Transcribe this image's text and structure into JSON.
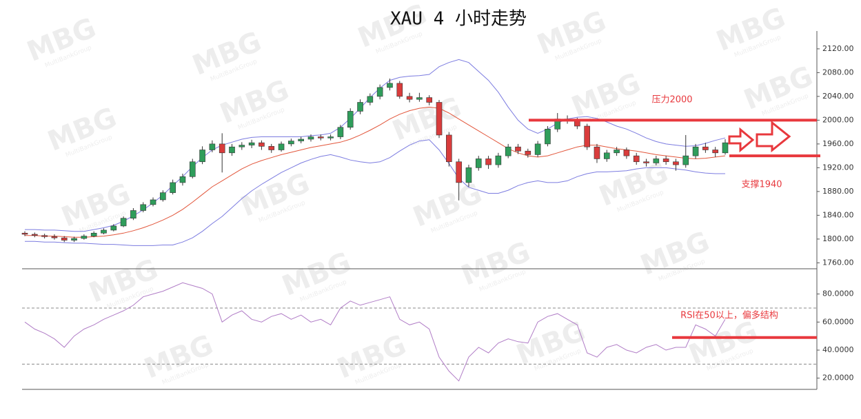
{
  "chart_data": {
    "type": "candlestick",
    "title": "XAU 4 小时走势",
    "ylim": [
      1750,
      2150
    ],
    "yticks": [
      {
        "value": 1760,
        "label": "1760.00"
      },
      {
        "value": 1800,
        "label": "1800.00"
      },
      {
        "value": 1840,
        "label": "1840.00"
      },
      {
        "value": 1880,
        "label": "1880.00"
      },
      {
        "value": 1920,
        "label": "1920.00"
      },
      {
        "value": 1960,
        "label": "1960.00"
      },
      {
        "value": 2000,
        "label": "2000.00"
      },
      {
        "value": 2040,
        "label": "2040.00"
      },
      {
        "value": 2080,
        "label": "2080.00"
      },
      {
        "value": 2120,
        "label": "2120.00"
      }
    ],
    "candles": {
      "up_color": "#2f9d5b",
      "down_color": "#d93c3c",
      "open": [
        1810,
        1808,
        1806,
        1804,
        1802,
        1798,
        1801,
        1805,
        1810,
        1815,
        1822,
        1835,
        1848,
        1858,
        1866,
        1878,
        1895,
        1905,
        1930,
        1950,
        1960,
        1945,
        1955,
        1958,
        1962,
        1956,
        1950,
        1960,
        1965,
        1968,
        1972,
        1970,
        1972,
        1988,
        2015,
        2030,
        2040,
        2055,
        2062,
        2040,
        2035,
        2038,
        2030,
        1975,
        1930,
        1895,
        1920,
        1935,
        1925,
        1940,
        1955,
        1948,
        1942,
        1960,
        1985,
        2002,
        2000,
        1990,
        1955,
        1935,
        1945,
        1950,
        1940,
        1930,
        1928,
        1935,
        1930,
        1925,
        1940,
        1955,
        1950,
        1945
      ],
      "high": [
        1813,
        1811,
        1809,
        1808,
        1805,
        1804,
        1808,
        1813,
        1818,
        1825,
        1838,
        1852,
        1862,
        1870,
        1882,
        1900,
        1910,
        1935,
        1956,
        1966,
        1978,
        1960,
        1963,
        1967,
        1966,
        1960,
        1964,
        1969,
        1972,
        1976,
        1976,
        1976,
        1992,
        2020,
        2035,
        2045,
        2060,
        2070,
        2066,
        2046,
        2046,
        2042,
        2034,
        1980,
        1935,
        1925,
        1940,
        1940,
        1945,
        1960,
        1960,
        1952,
        1965,
        1990,
        2012,
        2008,
        2004,
        1994,
        1960,
        1950,
        1955,
        1954,
        1945,
        1935,
        1940,
        1940,
        1935,
        1975,
        1960,
        1962,
        1955,
        1968
      ],
      "low": [
        1805,
        1803,
        1801,
        1799,
        1795,
        1795,
        1799,
        1803,
        1808,
        1813,
        1820,
        1832,
        1845,
        1855,
        1863,
        1875,
        1890,
        1902,
        1926,
        1946,
        1912,
        1940,
        1950,
        1953,
        1950,
        1945,
        1947,
        1956,
        1961,
        1964,
        1966,
        1966,
        1968,
        1984,
        2010,
        2025,
        2035,
        2050,
        2036,
        2030,
        2031,
        2025,
        1970,
        1922,
        1865,
        1888,
        1915,
        1918,
        1920,
        1936,
        1943,
        1937,
        1938,
        1956,
        1980,
        1994,
        1985,
        1950,
        1928,
        1930,
        1940,
        1935,
        1925,
        1922,
        1924,
        1925,
        1915,
        1920,
        1935,
        1945,
        1938,
        1942
      ],
      "close": [
        1808,
        1806,
        1804,
        1802,
        1798,
        1801,
        1805,
        1810,
        1815,
        1822,
        1835,
        1848,
        1858,
        1866,
        1878,
        1895,
        1905,
        1930,
        1950,
        1960,
        1945,
        1955,
        1958,
        1962,
        1956,
        1950,
        1960,
        1965,
        1968,
        1972,
        1970,
        1972,
        1988,
        2015,
        2030,
        2040,
        2055,
        2062,
        2040,
        2035,
        2038,
        2030,
        1975,
        1930,
        1895,
        1920,
        1935,
        1925,
        1940,
        1955,
        1948,
        1942,
        1960,
        1985,
        2002,
        2000,
        1990,
        1955,
        1935,
        1945,
        1950,
        1940,
        1930,
        1928,
        1935,
        1930,
        1925,
        1940,
        1955,
        1950,
        1945,
        1962
      ]
    },
    "bands": {
      "upper": {
        "color": "#7b7be0",
        "values": [
          1816,
          1816,
          1815,
          1815,
          1814,
          1813,
          1813,
          1816,
          1819,
          1823,
          1830,
          1839,
          1849,
          1861,
          1874,
          1890,
          1905,
          1922,
          1937,
          1950,
          1958,
          1963,
          1968,
          1971,
          1972,
          1972,
          1972,
          1972,
          1972,
          1974,
          1975,
          1978,
          1988,
          2003,
          2020,
          2038,
          2054,
          2067,
          2072,
          2074,
          2075,
          2077,
          2090,
          2097,
          2102,
          2097,
          2082,
          2067,
          2047,
          2022,
          2000,
          1985,
          1978,
          1985,
          1995,
          2002,
          2005,
          2006,
          2003,
          1997,
          1990,
          1985,
          1978,
          1970,
          1964,
          1960,
          1958,
          1956,
          1957,
          1961,
          1966,
          1970
        ]
      },
      "middle": {
        "color": "#e2553a",
        "values": [
          1806,
          1806,
          1805,
          1805,
          1804,
          1803,
          1803,
          1804,
          1805,
          1807,
          1810,
          1814,
          1819,
          1825,
          1832,
          1840,
          1850,
          1862,
          1875,
          1888,
          1898,
          1908,
          1918,
          1926,
          1932,
          1937,
          1942,
          1946,
          1950,
          1954,
          1957,
          1960,
          1963,
          1968,
          1975,
          1983,
          1992,
          2002,
          2010,
          2016,
          2020,
          2022,
          2020,
          2012,
          2002,
          1992,
          1982,
          1972,
          1962,
          1952,
          1945,
          1940,
          1938,
          1940,
          1945,
          1950,
          1955,
          1958,
          1958,
          1955,
          1952,
          1950,
          1948,
          1945,
          1942,
          1940,
          1938,
          1936,
          1935,
          1936,
          1938,
          1940
        ]
      },
      "lower": {
        "color": "#7b7be0",
        "values": [
          1796,
          1796,
          1795,
          1795,
          1794,
          1793,
          1793,
          1792,
          1791,
          1791,
          1790,
          1789,
          1789,
          1789,
          1790,
          1790,
          1795,
          1802,
          1813,
          1826,
          1838,
          1853,
          1868,
          1881,
          1892,
          1902,
          1912,
          1920,
          1928,
          1934,
          1939,
          1942,
          1938,
          1933,
          1930,
          1928,
          1930,
          1937,
          1948,
          1958,
          1965,
          1967,
          1950,
          1927,
          1902,
          1887,
          1882,
          1877,
          1877,
          1882,
          1890,
          1895,
          1898,
          1895,
          1895,
          1898,
          1905,
          1910,
          1913,
          1913,
          1914,
          1915,
          1918,
          1920,
          1920,
          1920,
          1918,
          1916,
          1913,
          1911,
          1910,
          1910
        ]
      }
    },
    "annotations": [
      {
        "text": "压力2000",
        "value": 2000,
        "color": "#e8383d"
      },
      {
        "text": "支撑1940",
        "value": 1940,
        "color": "#e8383d"
      }
    ],
    "rsi": {
      "color": "#b07cc6",
      "values": [
        60,
        55,
        52,
        48,
        42,
        50,
        55,
        58,
        62,
        65,
        68,
        72,
        78,
        80,
        82,
        85,
        88,
        86,
        84,
        80,
        60,
        65,
        68,
        62,
        60,
        64,
        66,
        62,
        65,
        60,
        62,
        58,
        70,
        75,
        72,
        74,
        76,
        78,
        62,
        58,
        60,
        55,
        35,
        25,
        18,
        35,
        42,
        38,
        45,
        48,
        46,
        45,
        60,
        64,
        66,
        62,
        58,
        38,
        35,
        42,
        44,
        40,
        38,
        42,
        44,
        40,
        42,
        42,
        58,
        55,
        50,
        62
      ],
      "ylim": [
        12,
        98
      ],
      "yticks": [
        {
          "value": 20,
          "label": "20.0000"
        },
        {
          "value": 40,
          "label": "40.0000"
        },
        {
          "value": 60,
          "label": "60.0000"
        },
        {
          "value": 80,
          "label": "80.0000"
        }
      ],
      "levels": [
        70,
        30
      ],
      "annotation": {
        "text": "RSI在50以上，偏多结构",
        "value": 49,
        "color": "#e8383d"
      }
    },
    "watermark": {
      "logo": "MBG",
      "text": "MultiBankGroup"
    }
  }
}
